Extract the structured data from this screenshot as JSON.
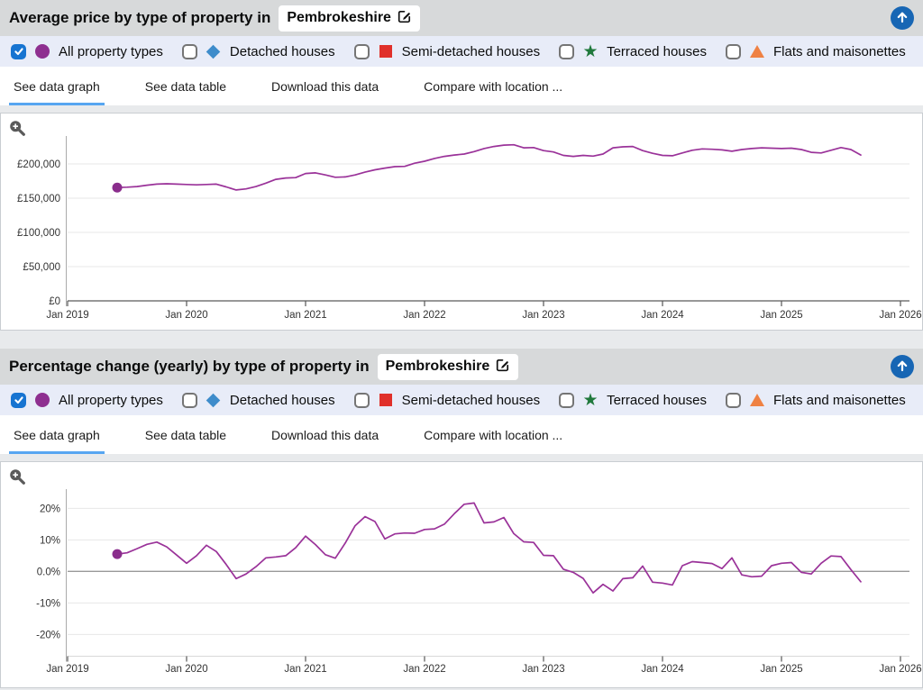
{
  "colors": {
    "series_line": "#9a3299",
    "series_marker": "#8a2d8c",
    "checked_checkbox": "#1774d1",
    "tab_underline": "#57a6f1",
    "up_button": "#1766b4",
    "legend_bar_bg": "#e8ecf8",
    "title_bar_bg": "#d7d9da"
  },
  "icons": {
    "edit": "pencil-square-icon",
    "up": "arrow-up-circle-icon",
    "zoom": "magnifier-plus-icon",
    "check": "checkmark-icon"
  },
  "sections": [
    {
      "title": "Average price by type of property in",
      "location": "Pembrokeshire",
      "legend": [
        {
          "label": "All property types",
          "marker": "circle",
          "color": "#8e2f90",
          "checked": true
        },
        {
          "label": "Detached houses",
          "marker": "diamond",
          "color": "#3e8ccb",
          "checked": false
        },
        {
          "label": "Semi-detached houses",
          "marker": "square",
          "color": "#e0302a",
          "checked": false
        },
        {
          "label": "Terraced houses",
          "marker": "star",
          "color": "#20793c",
          "checked": false
        },
        {
          "label": "Flats and maisonettes",
          "marker": "triangle",
          "color": "#ef8143",
          "checked": false
        }
      ],
      "tabs": [
        {
          "label": "See data graph",
          "active": true
        },
        {
          "label": "See data table",
          "active": false
        },
        {
          "label": "Download this data",
          "active": false
        },
        {
          "label": "Compare with location ...",
          "active": false
        }
      ]
    },
    {
      "title": "Percentage change (yearly) by type of property in",
      "location": "Pembrokeshire",
      "legend": [
        {
          "label": "All property types",
          "marker": "circle",
          "color": "#8e2f90",
          "checked": true
        },
        {
          "label": "Detached houses",
          "marker": "diamond",
          "color": "#3e8ccb",
          "checked": false
        },
        {
          "label": "Semi-detached houses",
          "marker": "square",
          "color": "#e0302a",
          "checked": false
        },
        {
          "label": "Terraced houses",
          "marker": "star",
          "color": "#20793c",
          "checked": false
        },
        {
          "label": "Flats and maisonettes",
          "marker": "triangle",
          "color": "#ef8143",
          "checked": false
        }
      ],
      "tabs": [
        {
          "label": "See data graph",
          "active": true
        },
        {
          "label": "See data table",
          "active": false
        },
        {
          "label": "Download this data",
          "active": false
        },
        {
          "label": "Compare with location ...",
          "active": false
        }
      ]
    }
  ],
  "chart_data": [
    {
      "type": "line",
      "title": "Average price by type of property in Pembrokeshire",
      "x_start": "Jun 2019",
      "x_step": "1 month",
      "x_tick_labels": [
        "Jan 2019",
        "Jan 2020",
        "Jan 2021",
        "Jan 2022",
        "Jan 2023",
        "Jan 2024",
        "Jan 2025",
        "Jan 2026"
      ],
      "y_ticks": [
        0,
        50000,
        100000,
        150000,
        200000
      ],
      "y_tick_labels": [
        "£0",
        "£50,000",
        "£100,000",
        "£150,000",
        "£200,000"
      ],
      "ylim": [
        0,
        240800
      ],
      "grid": true,
      "legend_position": "none",
      "series": [
        {
          "name": "All property types",
          "color": "#9a3299",
          "marker_first_point": true,
          "values": [
            165500,
            166000,
            167000,
            169000,
            170500,
            171000,
            170500,
            170000,
            169500,
            170000,
            170500,
            166500,
            162000,
            163500,
            167000,
            172000,
            177500,
            179500,
            180000,
            186000,
            187000,
            184000,
            180500,
            181000,
            184000,
            188000,
            191500,
            194000,
            196000,
            196500,
            201000,
            204000,
            208000,
            211000,
            213000,
            214500,
            218000,
            222500,
            225500,
            227500,
            228000,
            223500,
            224000,
            219500,
            217500,
            212500,
            211000,
            212500,
            211500,
            214500,
            223500,
            225000,
            225500,
            219500,
            215500,
            212500,
            212000,
            216000,
            220000,
            222000,
            221500,
            220500,
            218500,
            221000,
            222500,
            223500,
            223000,
            222500,
            223000,
            221000,
            217000,
            216000,
            220000,
            224000,
            221000,
            213000
          ]
        }
      ]
    },
    {
      "type": "line",
      "title": "Percentage change (yearly) by type of property in Pembrokeshire",
      "x_start": "Jun 2019",
      "x_step": "1 month",
      "x_tick_labels": [
        "Jan 2019",
        "Jan 2020",
        "Jan 2021",
        "Jan 2022",
        "Jan 2023",
        "Jan 2024",
        "Jan 2025",
        "Jan 2026"
      ],
      "y_ticks": [
        -20,
        -10,
        0,
        10,
        20
      ],
      "y_tick_labels": [
        "-20%",
        "-10%",
        "0.0%",
        "10%",
        "20%"
      ],
      "ylim": [
        -26.9,
        26.1
      ],
      "grid": true,
      "zero_line": true,
      "legend_position": "none",
      "series": [
        {
          "name": "All property types",
          "color": "#9a3299",
          "marker_first_point": true,
          "values": [
            5.5,
            5.9,
            7.2,
            8.6,
            9.3,
            7.8,
            5.2,
            2.6,
            5.0,
            8.3,
            6.3,
            2.2,
            -2.3,
            -0.8,
            1.5,
            4.3,
            4.6,
            5.0,
            7.5,
            11.2,
            8.5,
            5.3,
            4.2,
            9.0,
            14.5,
            17.4,
            15.8,
            10.3,
            11.9,
            12.2,
            12.1,
            13.3,
            13.5,
            15.0,
            18.3,
            21.3,
            21.7,
            15.4,
            15.7,
            17.1,
            12.0,
            9.4,
            9.2,
            5.1,
            5.0,
            0.7,
            -0.3,
            -2.2,
            -6.8,
            -4.1,
            -6.2,
            -2.3,
            -2.0,
            1.7,
            -3.4,
            -3.7,
            -4.3,
            1.8,
            3.1,
            2.8,
            2.5,
            0.9,
            4.3,
            -1.1,
            -1.7,
            -1.5,
            1.8,
            2.6,
            2.8,
            -0.3,
            -0.8,
            2.6,
            4.9,
            4.7,
            0.6,
            -3.3
          ]
        }
      ]
    }
  ]
}
